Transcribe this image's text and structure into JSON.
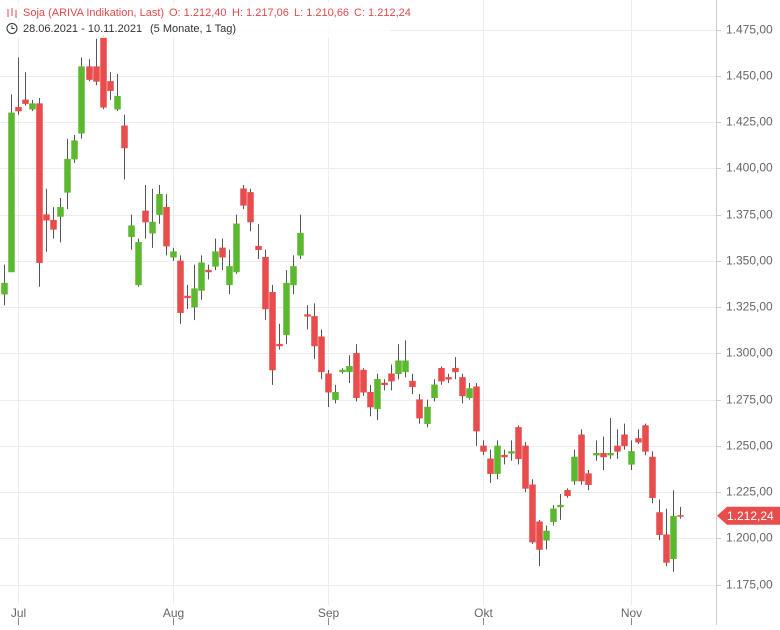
{
  "chart_data": {
    "type": "candlestick",
    "title": "Soja (ARIVA Indikation, Last)",
    "ohlc_labels": [
      "O: 1.212,40",
      "H: 1.217,06",
      "L: 1.210,66",
      "C: 1.212,24"
    ],
    "date_range": "28.06.2021 - 10.11.2021",
    "period": "(5 Monate, 1 Tag)",
    "categories": [
      null,
      null,
      "Jul",
      null,
      null,
      null,
      null,
      null,
      null,
      null,
      null,
      null,
      null,
      null,
      null,
      null,
      null,
      null,
      null,
      null,
      null,
      null,
      null,
      null,
      "Aug",
      null,
      null,
      null,
      null,
      null,
      null,
      null,
      null,
      null,
      null,
      null,
      null,
      null,
      null,
      null,
      null,
      null,
      null,
      null,
      null,
      null,
      "Sep",
      null,
      null,
      null,
      null,
      null,
      null,
      null,
      null,
      null,
      null,
      null,
      null,
      null,
      null,
      null,
      null,
      null,
      null,
      null,
      null,
      null,
      "Okt",
      null,
      null,
      null,
      null,
      null,
      null,
      null,
      null,
      null,
      null,
      null,
      null,
      null,
      null,
      null,
      null,
      null,
      null,
      null,
      null,
      "Nov",
      null,
      null,
      null,
      null,
      null,
      null,
      null
    ],
    "open": [
      1332,
      1344,
      1433,
      1437,
      1432,
      1435,
      1375,
      1372,
      1374,
      1387,
      1405,
      1419,
      1455,
      1455,
      1471,
      1447,
      1432,
      1423,
      1363,
      1337,
      1377,
      1365,
      1375,
      1379,
      1352,
      1350,
      1331,
      1325,
      1334,
      1345,
      1347,
      1357,
      1337,
      1344,
      1389,
      1387,
      1358,
      1352,
      1333,
      1305,
      1310,
      1337,
      1353,
      1321,
      1320,
      1309,
      1289,
      1275,
      1290,
      1290,
      1300,
      1291,
      1279,
      1270,
      1284,
      1289,
      1289,
      1290,
      1285,
      1275,
      1262,
      1276,
      1292,
      1287,
      1292,
      1287,
      1276,
      1282,
      1250,
      1243,
      1235,
      1245,
      1246,
      1260,
      1250,
      1229,
      1209,
      1199,
      1209,
      1217,
      1226,
      1231,
      1256,
      1235,
      1245,
      1246,
      1245,
      1250,
      1256,
      1240,
      1254,
      1261,
      1244,
      1214,
      1202,
      1189,
      1212.4
    ],
    "high": [
      1348,
      1440,
      1460,
      1452,
      1437,
      1438,
      1389,
      1379,
      1384,
      1416,
      1418,
      1460,
      1459,
      1470,
      1472,
      1452,
      1451,
      1429,
      1375,
      1362,
      1391,
      1389,
      1391,
      1386,
      1357,
      1353,
      1337,
      1348,
      1353,
      1348,
      1362,
      1362,
      1356,
      1375,
      1391,
      1389,
      1370,
      1356,
      1337,
      1316,
      1345,
      1353,
      1375,
      1326,
      1327,
      1313,
      1291,
      1283,
      1292,
      1299,
      1305,
      1292,
      1283,
      1289,
      1286,
      1294,
      1305,
      1307,
      1289,
      1278,
      1275,
      1286,
      1293,
      1289,
      1298,
      1289,
      1284,
      1284,
      1253,
      1248,
      1253,
      1248,
      1253,
      1261,
      1252,
      1232,
      1210,
      1207,
      1218,
      1224,
      1227,
      1248,
      1259,
      1237,
      1253,
      1255,
      1265,
      1259,
      1262,
      1253,
      1259,
      1262,
      1247,
      1221,
      1216,
      1226,
      1217.06
    ],
    "low": [
      1326,
      1344,
      1429,
      1434,
      1431,
      1336,
      1355,
      1362,
      1360,
      1378,
      1403,
      1416,
      1447,
      1445,
      1432,
      1437,
      1431,
      1394,
      1356,
      1336,
      1362,
      1357,
      1370,
      1353,
      1350,
      1316,
      1324,
      1318,
      1329,
      1340,
      1345,
      1345,
      1332,
      1343,
      1378,
      1366,
      1351,
      1318,
      1283,
      1302,
      1305,
      1332,
      1351,
      1313,
      1297,
      1286,
      1271,
      1273,
      1289,
      1284,
      1274,
      1277,
      1266,
      1264,
      1280,
      1280,
      1286,
      1287,
      1278,
      1262,
      1260,
      1274,
      1283,
      1284,
      1286,
      1273,
      1275,
      1250,
      1245,
      1230,
      1232,
      1240,
      1242,
      1240,
      1225,
      1197,
      1185,
      1194,
      1207,
      1210,
      1222,
      1229,
      1229,
      1226,
      1242,
      1237,
      1243,
      1243,
      1248,
      1237,
      1251,
      1245,
      1219,
      1199,
      1185,
      1182,
      1210.66
    ],
    "close": [
      1338,
      1430,
      1431,
      1435,
      1435,
      1349,
      1372,
      1367,
      1379,
      1405,
      1415,
      1455,
      1448,
      1447,
      1433,
      1442,
      1439,
      1411,
      1369,
      1360,
      1371,
      1371,
      1386,
      1358,
      1355,
      1322,
      1330,
      1335,
      1349,
      1344,
      1355,
      1352,
      1347,
      1370,
      1380,
      1371,
      1356,
      1324,
      1291,
      1304,
      1338,
      1347,
      1365,
      1320,
      1304,
      1290,
      1279,
      1279,
      1291,
      1293,
      1276,
      1279,
      1271,
      1286,
      1283,
      1285,
      1296,
      1296,
      1282,
      1265,
      1271,
      1283,
      1285,
      1286,
      1290,
      1277,
      1281,
      1258,
      1247,
      1235,
      1250,
      1244,
      1247,
      1243,
      1227,
      1198,
      1194,
      1204,
      1216,
      1218,
      1223,
      1244,
      1231,
      1229,
      1246,
      1244,
      1246,
      1247,
      1250,
      1247,
      1252,
      1247,
      1222,
      1202,
      1187,
      1212,
      1212.24
    ],
    "last_value_label": "1.212,24",
    "up_color": "#5cb82e",
    "down_color": "#e84c4c",
    "ylim": [
      1164,
      1491
    ],
    "yticks": [
      {
        "value": 1175,
        "label": "1.175,00"
      },
      {
        "value": 1200,
        "label": "1.200,00"
      },
      {
        "value": 1225,
        "label": "1.225,00"
      },
      {
        "value": 1250,
        "label": "1.250,00"
      },
      {
        "value": 1275,
        "label": "1.275,00"
      },
      {
        "value": 1300,
        "label": "1.300,00"
      },
      {
        "value": 1325,
        "label": "1.325,00"
      },
      {
        "value": 1350,
        "label": "1.350,00"
      },
      {
        "value": 1375,
        "label": "1.375,00"
      },
      {
        "value": 1400,
        "label": "1.400,00"
      },
      {
        "value": 1425,
        "label": "1.425,00"
      },
      {
        "value": 1450,
        "label": "1.450,00"
      },
      {
        "value": 1475,
        "label": "1.475,00"
      }
    ],
    "grid": true
  }
}
